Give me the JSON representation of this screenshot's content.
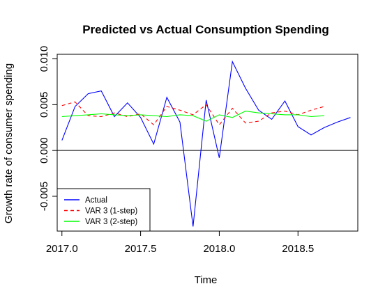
{
  "chart_data": {
    "type": "line",
    "title": "Predicted vs Actual Consumption Spending",
    "xlabel": "Time",
    "ylabel": "Growth rate of consumer spending",
    "xlim": [
      2016.97,
      2018.88
    ],
    "ylim": [
      -0.0088,
      0.0105
    ],
    "x_ticks": [
      2017.0,
      2017.5,
      2018.0,
      2018.5
    ],
    "x_tick_labels": [
      "2017.0",
      "2017.5",
      "2018.0",
      "2018.5"
    ],
    "y_ticks": [
      -0.005,
      0.0,
      0.005,
      0.01
    ],
    "y_tick_labels": [
      "-0.005",
      "0.000",
      "0.005",
      "0.010"
    ],
    "hline": 0,
    "grid": false,
    "legend_position": "bottom-left",
    "series": [
      {
        "name": "Actual",
        "color": "#0000ff",
        "dash": "solid",
        "x": [
          2017.0,
          2017.0833,
          2017.1667,
          2017.25,
          2017.3333,
          2017.4167,
          2017.5,
          2017.5833,
          2017.6667,
          2017.75,
          2017.8333,
          2017.9167,
          2018.0,
          2018.0833,
          2018.1667,
          2018.25,
          2018.3333,
          2018.4167,
          2018.5,
          2018.5833,
          2018.6667,
          2018.75,
          2018.8333
        ],
        "y": [
          0.0011,
          0.0048,
          0.0062,
          0.0065,
          0.0037,
          0.0052,
          0.0036,
          0.0007,
          0.0058,
          0.0031,
          -0.0083,
          0.0055,
          -0.0008,
          0.0097,
          0.0068,
          0.0044,
          0.0034,
          0.0054,
          0.0026,
          0.0017,
          0.0025,
          0.0031,
          0.0036
        ]
      },
      {
        "name": "VAR 3 (1-step)",
        "color": "#ff0000",
        "dash": "dashed",
        "x": [
          2017.0,
          2017.0833,
          2017.1667,
          2017.25,
          2017.3333,
          2017.4167,
          2017.5,
          2017.5833,
          2017.6667,
          2017.75,
          2017.8333,
          2017.9167,
          2018.0,
          2018.0833,
          2018.1667,
          2018.25,
          2018.3333,
          2018.4167,
          2018.5,
          2018.5833,
          2018.6667
        ],
        "y": [
          0.0049,
          0.0053,
          0.0038,
          0.0037,
          0.0041,
          0.0037,
          0.004,
          0.0028,
          0.0048,
          0.0044,
          0.0039,
          0.005,
          0.0028,
          0.0046,
          0.003,
          0.0032,
          0.0041,
          0.0043,
          0.0039,
          0.0044,
          0.0048
        ]
      },
      {
        "name": "VAR 3 (2-step)",
        "color": "#00ff00",
        "dash": "solid",
        "x": [
          2017.0,
          2017.0833,
          2017.1667,
          2017.25,
          2017.3333,
          2017.4167,
          2017.5,
          2017.5833,
          2017.6667,
          2017.75,
          2017.8333,
          2017.9167,
          2018.0,
          2018.0833,
          2018.1667,
          2018.25,
          2018.3333,
          2018.4167,
          2018.5,
          2018.5833,
          2018.6667
        ],
        "y": [
          0.0037,
          0.0038,
          0.0039,
          0.004,
          0.0039,
          0.0038,
          0.0039,
          0.0038,
          0.0037,
          0.0039,
          0.0038,
          0.0032,
          0.0039,
          0.0036,
          0.0043,
          0.0041,
          0.004,
          0.0039,
          0.0039,
          0.0037,
          0.0038
        ]
      }
    ]
  }
}
